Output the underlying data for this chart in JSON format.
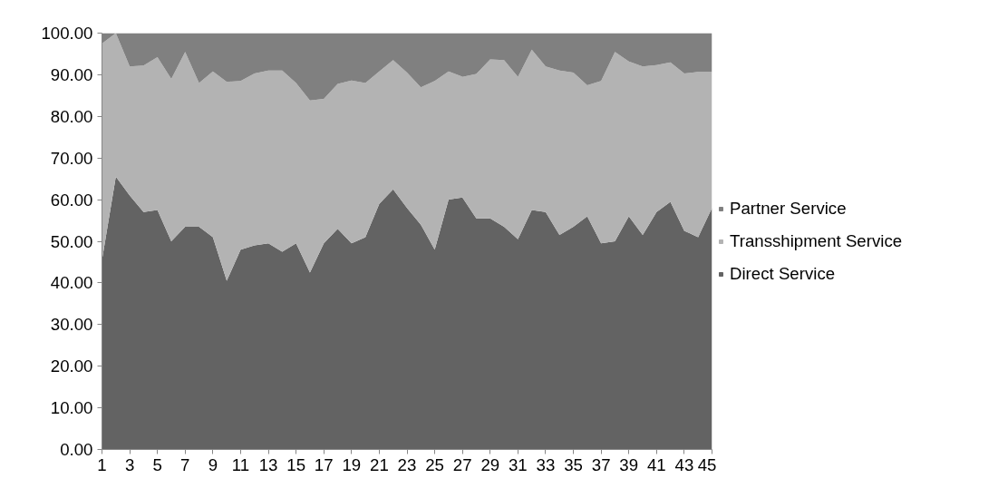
{
  "chart_data": {
    "type": "area",
    "stacked": true,
    "x": [
      1,
      2,
      3,
      4,
      5,
      6,
      7,
      8,
      9,
      10,
      11,
      12,
      13,
      14,
      15,
      16,
      17,
      18,
      19,
      20,
      21,
      22,
      23,
      24,
      25,
      26,
      27,
      28,
      29,
      30,
      31,
      32,
      33,
      34,
      35,
      36,
      37,
      38,
      39,
      40,
      41,
      42,
      43,
      44,
      45
    ],
    "series": [
      {
        "name": "Direct Service",
        "color": "#636363",
        "values": [
          45.5,
          65.5,
          61,
          57,
          57.5,
          50,
          53.5,
          53.5,
          51,
          40.5,
          48,
          49,
          49.5,
          47.5,
          49.5,
          42.5,
          49.5,
          53,
          49.5,
          51,
          59,
          62.5,
          58,
          54,
          48,
          60,
          60.5,
          55.5,
          55.5,
          53.5,
          50.5,
          57.5,
          57,
          51.5,
          53.5,
          56,
          49.5,
          50,
          56,
          51.5,
          57,
          59.5,
          52.5,
          51,
          58
        ]
      },
      {
        "name": "Transshipment Service",
        "color": "#b3b3b3",
        "values": [
          52,
          34.5,
          31,
          35.2,
          36.7,
          39,
          42,
          34.5,
          39.8,
          47.8,
          40.5,
          41.3,
          41.5,
          43.5,
          38.5,
          41.3,
          34.7,
          34.8,
          39.1,
          37,
          31.8,
          31,
          32.5,
          33,
          40.5,
          30.8,
          29,
          34.7,
          38.2,
          40,
          39,
          38.5,
          35,
          39.5,
          37,
          31.5,
          39,
          45.5,
          37.2,
          40.5,
          35.3,
          33.5,
          37.8,
          39.7,
          32.7
        ]
      },
      {
        "name": "Partner Service",
        "color": "#808080",
        "values": [
          2.5,
          0,
          8,
          7.8,
          5.8,
          11,
          4.5,
          12,
          9.2,
          11.7,
          11.5,
          9.7,
          9,
          9,
          12,
          16.2,
          15.8,
          12.2,
          11.4,
          12,
          9.2,
          6.5,
          9.5,
          13,
          11.5,
          9.2,
          10.5,
          9.8,
          6.3,
          6.5,
          10.5,
          4,
          8,
          9,
          9.5,
          12.5,
          11.5,
          4.5,
          6.8,
          8,
          7.7,
          7,
          9.7,
          9.3,
          9.3
        ]
      }
    ],
    "xlim": [
      1,
      45
    ],
    "xticks": [
      1,
      3,
      5,
      7,
      9,
      11,
      13,
      15,
      17,
      19,
      21,
      23,
      25,
      27,
      29,
      31,
      33,
      35,
      37,
      39,
      41,
      43,
      45
    ],
    "ylim": [
      0,
      100
    ],
    "yticks": [
      {
        "value": 0,
        "label": "0.00"
      },
      {
        "value": 10,
        "label": "10.00"
      },
      {
        "value": 20,
        "label": "20.00"
      },
      {
        "value": 30,
        "label": "30.00"
      },
      {
        "value": 40,
        "label": "40.00"
      },
      {
        "value": 50,
        "label": "50.00"
      },
      {
        "value": 60,
        "label": "60.00"
      },
      {
        "value": 70,
        "label": "70.00"
      },
      {
        "value": 80,
        "label": "80.00"
      },
      {
        "value": 90,
        "label": "90.00"
      },
      {
        "value": 100,
        "label": "100.00"
      }
    ],
    "grid": false,
    "legend": "right"
  }
}
